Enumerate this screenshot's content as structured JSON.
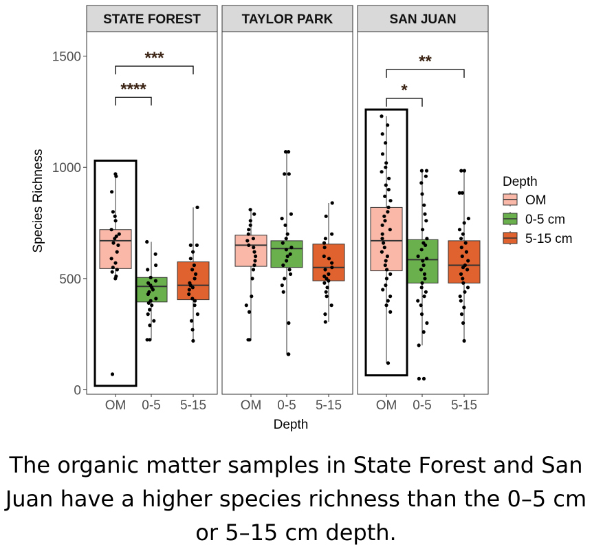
{
  "caption": "The organic matter samples in State Forest and San Juan have a higher species richness than the 0–5 cm or 5–15 cm depth.",
  "chart_data": {
    "type": "box",
    "xlabel": "Depth",
    "ylabel": "Species  Richness",
    "ylim": [
      -20,
      1610
    ],
    "yticks": [
      0,
      500,
      1000,
      1500
    ],
    "categories": [
      "OM",
      "0-5",
      "5-15"
    ],
    "legend": {
      "title": "Depth",
      "position": "right",
      "items": [
        {
          "label": "OM",
          "color": "#f9b8a8"
        },
        {
          "label": "0-5 cm",
          "color": "#6ab04c"
        },
        {
          "label": "5-15 cm",
          "color": "#e0622e"
        }
      ]
    },
    "grid": false,
    "panels": [
      {
        "title": "STATE FOREST",
        "boxes": [
          {
            "category": "OM",
            "q1": 545,
            "median": 670,
            "q3": 720,
            "whisker_low": 500,
            "whisker_high": 965,
            "points": [
              970,
              960,
              890,
              800,
              780,
              760,
              720,
              700,
              690,
              680,
              660,
              650,
              620,
              590,
              570,
              550,
              540,
              530,
              510,
              500,
              70
            ]
          },
          {
            "category": "0-5",
            "q1": 395,
            "median": 465,
            "q3": 505,
            "whisker_low": 225,
            "whisker_high": 665,
            "points": [
              665,
              610,
              560,
              540,
              505,
              490,
              480,
              470,
              460,
              450,
              440,
              430,
              410,
              400,
              390,
              380,
              360,
              340,
              310,
              290,
              225,
              225
            ]
          },
          {
            "category": "5-15",
            "q1": 405,
            "median": 470,
            "q3": 575,
            "whisker_low": 220,
            "whisker_high": 820,
            "points": [
              820,
              650,
              650,
              620,
              590,
              560,
              540,
              520,
              500,
              480,
              470,
              460,
              450,
              430,
              410,
              400,
              380,
              340,
              310,
              270,
              220
            ]
          }
        ],
        "highlight_box": {
          "category": "OM",
          "y_low": 18,
          "y_high": 1030
        },
        "comparisons": [
          {
            "from": "OM",
            "to": "0-5",
            "label": "****",
            "y": 1315
          },
          {
            "from": "OM",
            "to": "5-15",
            "label": "***",
            "y": 1455
          }
        ]
      },
      {
        "title": "TAYLOR PARK",
        "boxes": [
          {
            "category": "OM",
            "q1": 555,
            "median": 650,
            "q3": 695,
            "whisker_low": 225,
            "whisker_high": 810,
            "points": [
              810,
              790,
              760,
              740,
              720,
              700,
              680,
              670,
              650,
              640,
              620,
              600,
              580,
              560,
              540,
              500,
              420,
              380,
              350,
              225,
              225
            ]
          },
          {
            "category": "0-5",
            "q1": 550,
            "median": 635,
            "q3": 670,
            "whisker_low": 160,
            "whisker_high": 1070,
            "points": [
              1070,
              1070,
              970,
              970,
              790,
              770,
              740,
              700,
              680,
              660,
              640,
              630,
              610,
              600,
              580,
              560,
              540,
              520,
              500,
              470,
              440,
              300,
              160,
              160
            ]
          },
          {
            "category": "5-15",
            "q1": 490,
            "median": 550,
            "q3": 655,
            "whisker_low": 305,
            "whisker_high": 840,
            "points": [
              840,
              780,
              700,
              680,
              660,
              640,
              600,
              590,
              570,
              550,
              540,
              520,
              510,
              500,
              490,
              480,
              460,
              440,
              420,
              380,
              340,
              305
            ]
          }
        ],
        "comparisons": []
      },
      {
        "title": "SAN  JUAN",
        "boxes": [
          {
            "category": "OM",
            "q1": 535,
            "median": 670,
            "q3": 820,
            "whisker_low": 120,
            "whisker_high": 1230,
            "points": [
              1230,
              1190,
              1150,
              1110,
              1060,
              1020,
              1000,
              980,
              950,
              920,
              900,
              870,
              850,
              820,
              800,
              780,
              760,
              740,
              720,
              700,
              680,
              660,
              640,
              620,
              600,
              580,
              560,
              540,
              520,
              500,
              470,
              450,
              420,
              400,
              380,
              350,
              120
            ]
          },
          {
            "category": "0-5",
            "q1": 480,
            "median": 585,
            "q3": 675,
            "whisker_low": 200,
            "whisker_high": 985,
            "points": [
              985,
              985,
              960,
              930,
              880,
              830,
              790,
              760,
              720,
              680,
              660,
              650,
              630,
              600,
              590,
              580,
              560,
              540,
              520,
              500,
              480,
              460,
              440,
              420,
              400,
              380,
              340,
              300,
              260,
              200,
              50,
              50
            ]
          },
          {
            "category": "5-15",
            "q1": 480,
            "median": 560,
            "q3": 670,
            "whisker_low": 220,
            "whisker_high": 985,
            "points": [
              985,
              985,
              885,
              885,
              770,
              750,
              720,
              700,
              680,
              660,
              640,
              620,
              600,
              580,
              560,
              550,
              540,
              520,
              500,
              480,
              460,
              440,
              420,
              400,
              370,
              340,
              300,
              220
            ]
          }
        ],
        "highlight_box": {
          "category": "OM",
          "y_low": 65,
          "y_high": 1260
        },
        "comparisons": [
          {
            "from": "OM",
            "to": "0-5",
            "label": "*",
            "y": 1310
          },
          {
            "from": "OM",
            "to": "5-15",
            "label": "**",
            "y": 1440
          }
        ]
      }
    ]
  }
}
